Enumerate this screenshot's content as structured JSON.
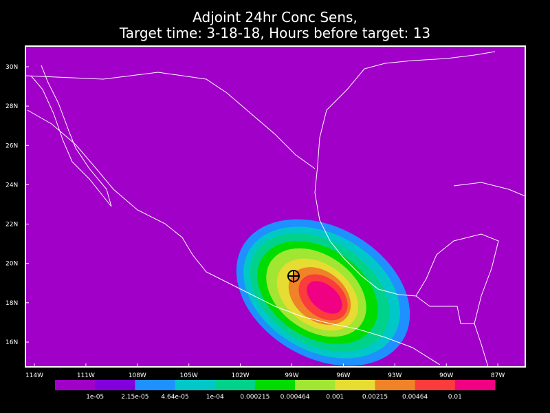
{
  "title": {
    "line1": "Adjoint 24hr Conc Sens,",
    "line2": "Target time: 3-18-18, Hours before target: 13"
  },
  "map": {
    "background": "#a000c8",
    "lat_labels": [
      "30N",
      "28N",
      "26N",
      "24N",
      "22N",
      "20N",
      "18N",
      "16N"
    ],
    "lon_labels": [
      "114W",
      "111W",
      "108W",
      "105W",
      "102W",
      "99W",
      "96W",
      "93W",
      "90W",
      "87W"
    ]
  },
  "colorbar": {
    "colors": [
      "#a000c8",
      "#8200dc",
      "#1e90ff",
      "#00c8c8",
      "#00d28c",
      "#00dc00",
      "#a0e632",
      "#e6dc32",
      "#f08228",
      "#fa3c3c",
      "#f00082"
    ],
    "labels": [
      "1e-05",
      "2.15e-05",
      "4.64e-05",
      "1e-04",
      "0.000215",
      "0.000464",
      "0.001",
      "0.00215",
      "0.00464",
      "0.01"
    ]
  }
}
